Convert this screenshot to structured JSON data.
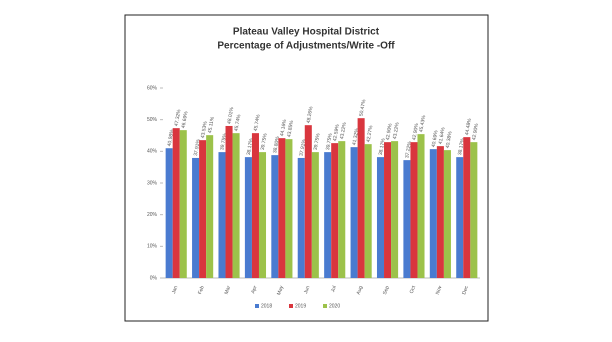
{
  "chart_data": {
    "type": "bar",
    "title": "Plateau Valley Hospital District",
    "subtitle": "Percentage of Adjustments/Write -Off",
    "categories": [
      "Jan",
      "Feb",
      "Mar",
      "Apr",
      "May",
      "Jun",
      "Jul",
      "Aug",
      "Sep",
      "Oct",
      "Nov",
      "Dec"
    ],
    "series": [
      {
        "name": "2018",
        "color": "#4a7bd0",
        "values": [
          40.98,
          37.91,
          39.75,
          38.17,
          38.8,
          37.91,
          39.75,
          41.32,
          38.17,
          37.22,
          40.69,
          38.17
        ],
        "value_labels": [
          "40.98%",
          "37.91%",
          "39.75%",
          "38.17%",
          "38.80%",
          "37.91%",
          "39.75%",
          "41.32%",
          "38.17%",
          "37.22%",
          "40.69%",
          "38.17%"
        ]
      },
      {
        "name": "2019",
        "color": "#d9363e",
        "values": [
          47.32,
          43.53,
          48.01,
          45.74,
          44.16,
          48.26,
          42.59,
          50.47,
          42.9,
          42.9,
          41.64,
          44.48
        ],
        "value_labels": [
          "47.32%",
          "43.53%",
          "48.01%",
          "45.74%",
          "44.16%",
          "48.26%",
          "42.59%",
          "50.47%",
          "42.90%",
          "42.90%",
          "41.64%",
          "44.48%"
        ]
      },
      {
        "name": "2020",
        "color": "#9cc24a",
        "values": [
          46.69,
          45.11,
          45.74,
          39.75,
          43.85,
          39.75,
          43.22,
          42.27,
          43.22,
          45.43,
          40.38,
          42.9
        ],
        "value_labels": [
          "46.69%",
          "45.11%",
          "45.74%",
          "39.75%",
          "43.85%",
          "39.75%",
          "43.22%",
          "42.27%",
          "43.22%",
          "45.43%",
          "40.38%",
          "42.90%"
        ]
      }
    ],
    "ylim": [
      0,
      60
    ],
    "yticks": [
      {
        "value": 0,
        "label": "0%"
      },
      {
        "value": 10,
        "label": "10%"
      },
      {
        "value": 20,
        "label": "20%"
      },
      {
        "value": 30,
        "label": "30%"
      },
      {
        "value": 40,
        "label": "40%"
      },
      {
        "value": 50,
        "label": "50%"
      },
      {
        "value": 60,
        "label": "60%"
      }
    ],
    "grid": false,
    "legend": "bottom"
  }
}
